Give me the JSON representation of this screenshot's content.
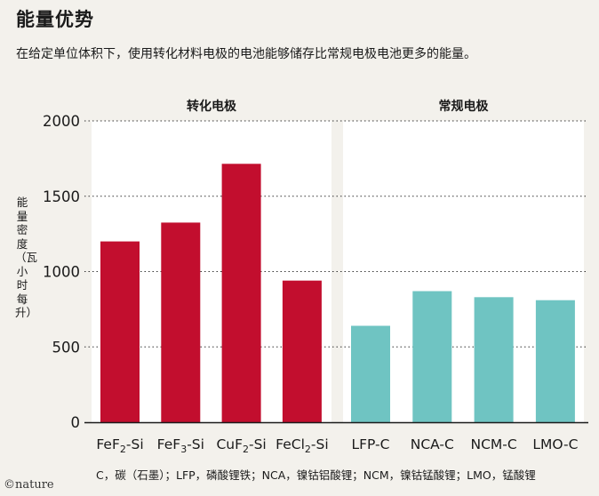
{
  "title": "能量优势",
  "subtitle": "在给定单位体积下，使用转化材料电极的电池能够储存比常规电极电池更多的能量。",
  "ylabel": "能量密度（瓦小时每升）",
  "footnote": "C，碳（石墨）；LFP，磷酸锂铁；NCA，镍钴铝酸锂；NCM，镍钴锰酸锂；LMO，锰酸锂",
  "logo": "©nature",
  "colors": {
    "conversion": "#c20e2e",
    "conventional": "#6fc4c2",
    "panel": "#ffffff"
  },
  "chart_data": {
    "type": "bar",
    "ylim": [
      0,
      2000
    ],
    "yticks": [
      "0",
      "500",
      "1000",
      "1500",
      "2000"
    ],
    "grid": true,
    "panels": [
      {
        "title": "转化电极",
        "categories": [
          {
            "base": "FeF",
            "sub": "2",
            "suffix": "-Si"
          },
          {
            "base": "FeF",
            "sub": "3",
            "suffix": "-Si"
          },
          {
            "base": "CuF",
            "sub": "2",
            "suffix": "-Si"
          },
          {
            "base": "FeCl",
            "sub": "2",
            "suffix": "-Si"
          }
        ],
        "values": [
          1200,
          1325,
          1715,
          940
        ]
      },
      {
        "title": "常规电极",
        "categories": [
          {
            "base": "LFP-C",
            "sub": "",
            "suffix": ""
          },
          {
            "base": "NCA-C",
            "sub": "",
            "suffix": ""
          },
          {
            "base": "NCM-C",
            "sub": "",
            "suffix": ""
          },
          {
            "base": "LMO-C",
            "sub": "",
            "suffix": ""
          }
        ],
        "values": [
          640,
          870,
          830,
          810
        ]
      }
    ]
  }
}
